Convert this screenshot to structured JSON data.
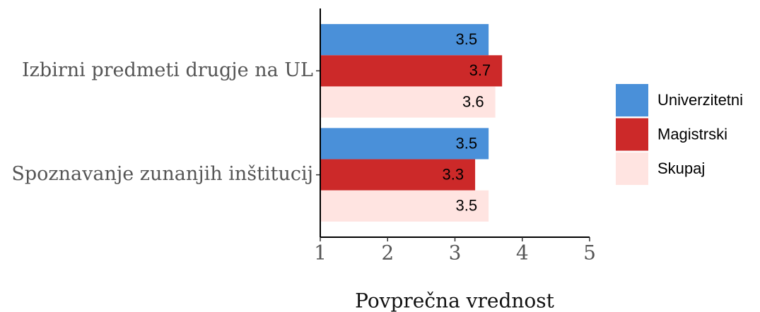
{
  "chart_data": {
    "type": "bar",
    "orientation": "horizontal",
    "x_label": "Povprečna vrednost",
    "categories": [
      "Izbirni predmeti drugje na UL",
      "Spoznavanje zunanjih inštitucij"
    ],
    "series": [
      {
        "name": "Univerzitetni",
        "color": "#4a90d9",
        "values": [
          3.5,
          3.5
        ]
      },
      {
        "name": "Magistrski",
        "color": "#cc2929",
        "values": [
          3.7,
          3.3
        ]
      },
      {
        "name": "Skupaj",
        "color": "#ffe4e1",
        "values": [
          3.6,
          3.5
        ]
      }
    ],
    "xlim": [
      1,
      5
    ],
    "xticks": [
      1,
      2,
      3,
      4,
      5
    ]
  }
}
